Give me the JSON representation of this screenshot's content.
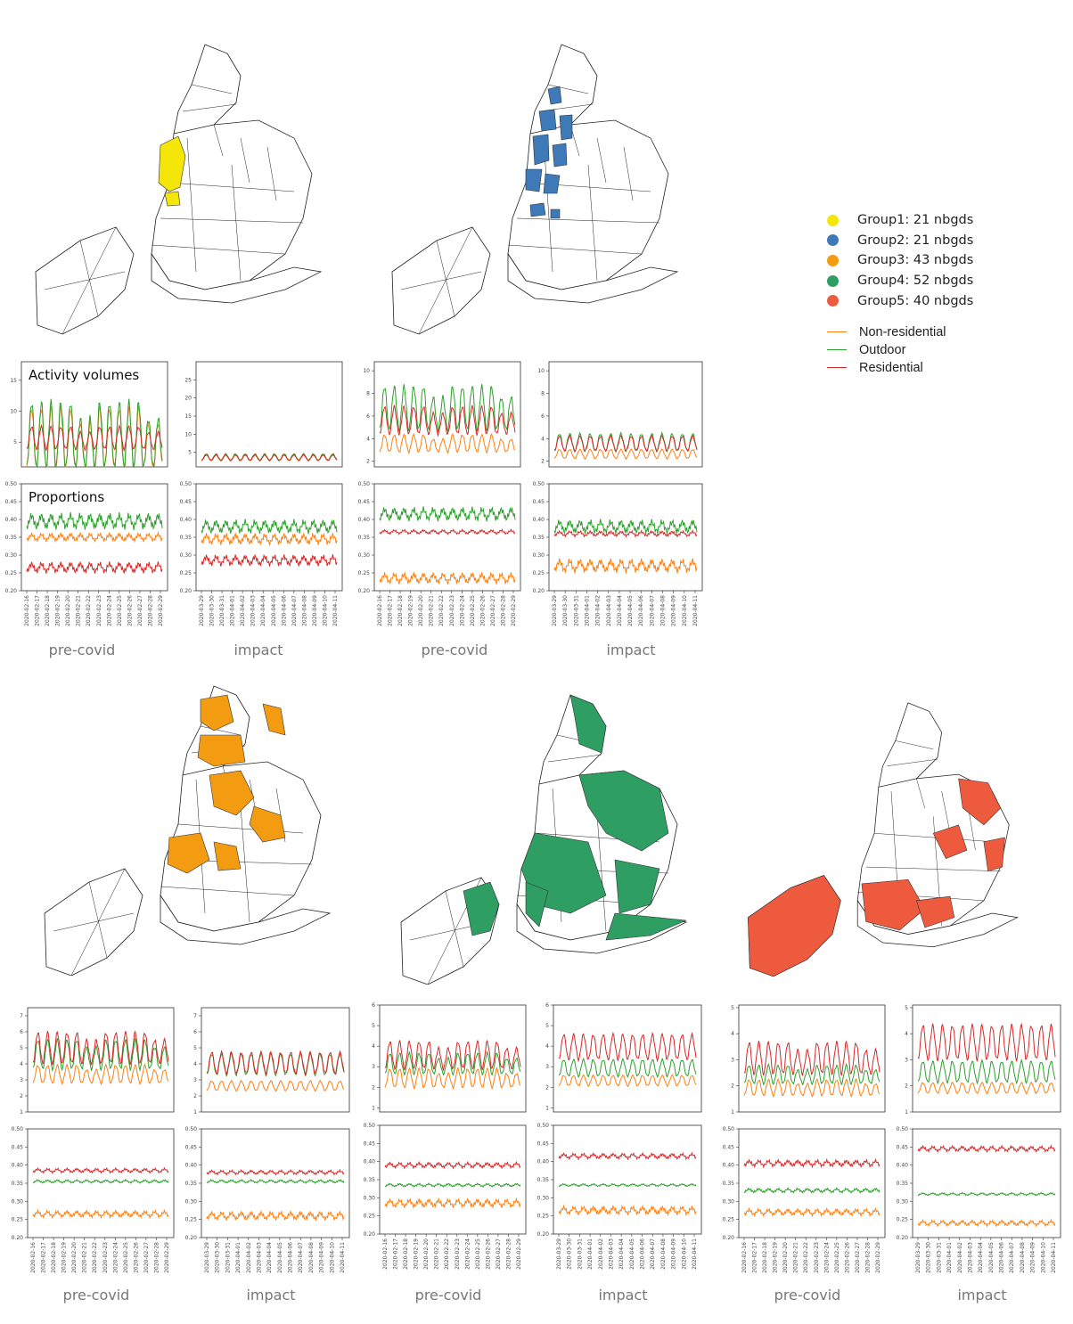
{
  "legend": {
    "groups": [
      {
        "label": "Group1: 21 nbgds",
        "color": "#f5e60a"
      },
      {
        "label": "Group2: 21 nbgds",
        "color": "#3d7ab7"
      },
      {
        "label": "Group3: 43 nbgds",
        "color": "#f39c12"
      },
      {
        "label": "Group4: 52 nbgds",
        "color": "#2e9e63"
      },
      {
        "label": "Group5: 40 nbgds",
        "color": "#ee5a3e"
      }
    ],
    "lines": [
      {
        "label": "Non-residential",
        "color": "#ff7f0e"
      },
      {
        "label": "Outdoor",
        "color": "#2ca02c"
      },
      {
        "label": "Residential",
        "color": "#d62728"
      }
    ]
  },
  "labels": {
    "volumes": "Activity volumes",
    "proportions": "Proportions",
    "precovid": "pre-covid",
    "impact": "impact"
  },
  "ticks": {
    "precovid_dates": [
      "2020-02-16",
      "2020-02-17",
      "2020-02-18",
      "2020-02-19",
      "2020-02-20",
      "2020-02-21",
      "2020-02-22",
      "2020-02-23",
      "2020-02-24",
      "2020-02-25",
      "2020-02-26",
      "2020-02-27",
      "2020-02-28",
      "2020-02-29"
    ],
    "impact_dates": [
      "2020-03-29",
      "2020-03-30",
      "2020-03-31",
      "2020-04-01",
      "2020-04-02",
      "2020-04-03",
      "2020-04-04",
      "2020-04-05",
      "2020-04-06",
      "2020-04-07",
      "2020-04-08",
      "2020-04-09",
      "2020-04-10",
      "2020-04-11"
    ],
    "prop_y": [
      "0.20",
      "0.25",
      "0.30",
      "0.35",
      "0.40",
      "0.45",
      "0.50"
    ]
  },
  "chart_data": [
    {
      "type": "line",
      "group": "Group1",
      "panel": "pre-covid",
      "metric": "volume",
      "ylim": [
        1,
        18
      ],
      "yticks": [
        5,
        10,
        15
      ],
      "series": [
        {
          "name": "Non-residential",
          "base": 5.2,
          "amp": 9.5
        },
        {
          "name": "Outdoor",
          "base": 5.6,
          "amp": 10.5
        },
        {
          "name": "Residential",
          "base": 5.5,
          "amp": 3.6
        }
      ]
    },
    {
      "type": "line",
      "group": "Group1",
      "panel": "impact",
      "metric": "volume",
      "ylim": [
        1,
        30
      ],
      "yticks": [
        5,
        10,
        15,
        20,
        25
      ],
      "series": [
        {
          "name": "Non-residential",
          "base": 3.4,
          "amp": 1.6
        },
        {
          "name": "Outdoor",
          "base": 3.6,
          "amp": 1.8
        },
        {
          "name": "Residential",
          "base": 3.5,
          "amp": 1.4
        }
      ]
    },
    {
      "type": "line",
      "group": "Group1",
      "panel": "pre-covid",
      "metric": "proportion",
      "ylim": [
        0.2,
        0.5
      ],
      "series": [
        {
          "name": "Non-residential",
          "base": 0.35,
          "amp": 0.015
        },
        {
          "name": "Outdoor",
          "base": 0.395,
          "amp": 0.03
        },
        {
          "name": "Residential",
          "base": 0.265,
          "amp": 0.02
        }
      ]
    },
    {
      "type": "line",
      "group": "Group1",
      "panel": "impact",
      "metric": "proportion",
      "ylim": [
        0.2,
        0.5
      ],
      "series": [
        {
          "name": "Non-residential",
          "base": 0.345,
          "amp": 0.02
        },
        {
          "name": "Outdoor",
          "base": 0.38,
          "amp": 0.025
        },
        {
          "name": "Residential",
          "base": 0.285,
          "amp": 0.02
        }
      ]
    },
    {
      "type": "line",
      "group": "Group2",
      "panel": "pre-covid",
      "metric": "volume",
      "ylim": [
        1.5,
        10.8
      ],
      "yticks": [
        2,
        4,
        6,
        8,
        10
      ],
      "series": [
        {
          "name": "Non-residential",
          "base": 3.5,
          "amp": 1.5
        },
        {
          "name": "Outdoor",
          "base": 6.5,
          "amp": 3.8
        },
        {
          "name": "Residential",
          "base": 5.5,
          "amp": 2.4
        }
      ]
    },
    {
      "type": "line",
      "group": "Group2",
      "panel": "impact",
      "metric": "volume",
      "ylim": [
        1.5,
        10.8
      ],
      "yticks": [
        2,
        4,
        6,
        8,
        10
      ],
      "series": [
        {
          "name": "Non-residential",
          "base": 2.6,
          "amp": 0.8
        },
        {
          "name": "Outdoor",
          "base": 3.6,
          "amp": 1.5
        },
        {
          "name": "Residential",
          "base": 3.5,
          "amp": 1.3
        }
      ]
    },
    {
      "type": "line",
      "group": "Group2",
      "panel": "pre-covid",
      "metric": "proportion",
      "ylim": [
        0.2,
        0.5
      ],
      "series": [
        {
          "name": "Non-residential",
          "base": 0.235,
          "amp": 0.02
        },
        {
          "name": "Outdoor",
          "base": 0.415,
          "amp": 0.025
        },
        {
          "name": "Residential",
          "base": 0.365,
          "amp": 0.008
        }
      ]
    },
    {
      "type": "line",
      "group": "Group2",
      "panel": "impact",
      "metric": "proportion",
      "ylim": [
        0.2,
        0.5
      ],
      "series": [
        {
          "name": "Non-residential",
          "base": 0.27,
          "amp": 0.025
        },
        {
          "name": "Outdoor",
          "base": 0.38,
          "amp": 0.025
        },
        {
          "name": "Residential",
          "base": 0.36,
          "amp": 0.01
        }
      ]
    },
    {
      "type": "line",
      "group": "Group3",
      "panel": "pre-covid",
      "metric": "volume",
      "ylim": [
        1,
        7.5
      ],
      "yticks": [
        1,
        2,
        3,
        4,
        5,
        6,
        7
      ],
      "series": [
        {
          "name": "Non-residential",
          "base": 3.3,
          "amp": 1.1
        },
        {
          "name": "Outdoor",
          "base": 4.5,
          "amp": 1.8
        },
        {
          "name": "Residential",
          "base": 4.9,
          "amp": 1.9
        }
      ]
    },
    {
      "type": "line",
      "group": "Group3",
      "panel": "impact",
      "metric": "volume",
      "ylim": [
        1,
        7.5
      ],
      "yticks": [
        1,
        2,
        3,
        4,
        5,
        6,
        7
      ],
      "series": [
        {
          "name": "Non-residential",
          "base": 2.6,
          "amp": 0.6
        },
        {
          "name": "Outdoor",
          "base": 3.9,
          "amp": 1.3
        },
        {
          "name": "Residential",
          "base": 4.0,
          "amp": 1.3
        }
      ]
    },
    {
      "type": "line",
      "group": "Group3",
      "panel": "pre-covid",
      "metric": "proportion",
      "ylim": [
        0.2,
        0.5
      ],
      "series": [
        {
          "name": "Non-residential",
          "base": 0.265,
          "amp": 0.012
        },
        {
          "name": "Outdoor",
          "base": 0.355,
          "amp": 0.006
        },
        {
          "name": "Residential",
          "base": 0.385,
          "amp": 0.008
        }
      ]
    },
    {
      "type": "line",
      "group": "Group3",
      "panel": "impact",
      "metric": "proportion",
      "ylim": [
        0.2,
        0.5
      ],
      "series": [
        {
          "name": "Non-residential",
          "base": 0.26,
          "amp": 0.015
        },
        {
          "name": "Outdoor",
          "base": 0.355,
          "amp": 0.006
        },
        {
          "name": "Residential",
          "base": 0.38,
          "amp": 0.008
        }
      ]
    },
    {
      "type": "line",
      "group": "Group4",
      "panel": "pre-covid",
      "metric": "volume",
      "ylim": [
        0.8,
        6
      ],
      "yticks": [
        1,
        2,
        3,
        4,
        5,
        6
      ],
      "series": [
        {
          "name": "Non-residential",
          "base": 2.4,
          "amp": 0.9
        },
        {
          "name": "Outdoor",
          "base": 3.1,
          "amp": 1.0
        },
        {
          "name": "Residential",
          "base": 3.5,
          "amp": 1.3
        }
      ]
    },
    {
      "type": "line",
      "group": "Group4",
      "panel": "impact",
      "metric": "volume",
      "ylim": [
        0.8,
        6
      ],
      "yticks": [
        1,
        2,
        3,
        4,
        5,
        6
      ],
      "series": [
        {
          "name": "Non-residential",
          "base": 2.3,
          "amp": 0.5
        },
        {
          "name": "Outdoor",
          "base": 2.9,
          "amp": 0.8
        },
        {
          "name": "Residential",
          "base": 3.9,
          "amp": 1.2
        }
      ]
    },
    {
      "type": "line",
      "group": "Group4",
      "panel": "pre-covid",
      "metric": "proportion",
      "ylim": [
        0.2,
        0.5
      ],
      "series": [
        {
          "name": "Non-residential",
          "base": 0.285,
          "amp": 0.015
        },
        {
          "name": "Outdoor",
          "base": 0.335,
          "amp": 0.006
        },
        {
          "name": "Residential",
          "base": 0.39,
          "amp": 0.01
        }
      ]
    },
    {
      "type": "line",
      "group": "Group4",
      "panel": "impact",
      "metric": "proportion",
      "ylim": [
        0.2,
        0.5
      ],
      "series": [
        {
          "name": "Non-residential",
          "base": 0.265,
          "amp": 0.015
        },
        {
          "name": "Outdoor",
          "base": 0.335,
          "amp": 0.005
        },
        {
          "name": "Residential",
          "base": 0.415,
          "amp": 0.01
        }
      ]
    },
    {
      "type": "line",
      "group": "Group5",
      "panel": "pre-covid",
      "metric": "volume",
      "ylim": [
        1,
        5.1
      ],
      "yticks": [
        1,
        2,
        3,
        4,
        5
      ],
      "series": [
        {
          "name": "Non-residential",
          "base": 1.9,
          "amp": 0.6
        },
        {
          "name": "Outdoor",
          "base": 2.4,
          "amp": 0.7
        },
        {
          "name": "Residential",
          "base": 3.0,
          "amp": 1.2
        }
      ]
    },
    {
      "type": "line",
      "group": "Group5",
      "panel": "impact",
      "metric": "volume",
      "ylim": [
        1,
        5.1
      ],
      "yticks": [
        1,
        2,
        3,
        4,
        5
      ],
      "series": [
        {
          "name": "Non-residential",
          "base": 1.9,
          "amp": 0.4
        },
        {
          "name": "Outdoor",
          "base": 2.5,
          "amp": 0.8
        },
        {
          "name": "Residential",
          "base": 3.6,
          "amp": 1.3
        }
      ]
    },
    {
      "type": "line",
      "group": "Group5",
      "panel": "pre-covid",
      "metric": "proportion",
      "ylim": [
        0.2,
        0.5
      ],
      "series": [
        {
          "name": "Non-residential",
          "base": 0.27,
          "amp": 0.012
        },
        {
          "name": "Outdoor",
          "base": 0.33,
          "amp": 0.008
        },
        {
          "name": "Residential",
          "base": 0.405,
          "amp": 0.012
        }
      ]
    },
    {
      "type": "line",
      "group": "Group5",
      "panel": "impact",
      "metric": "proportion",
      "ylim": [
        0.2,
        0.5
      ],
      "series": [
        {
          "name": "Non-residential",
          "base": 0.24,
          "amp": 0.01
        },
        {
          "name": "Outdoor",
          "base": 0.32,
          "amp": 0.005
        },
        {
          "name": "Residential",
          "base": 0.445,
          "amp": 0.01
        }
      ]
    }
  ]
}
